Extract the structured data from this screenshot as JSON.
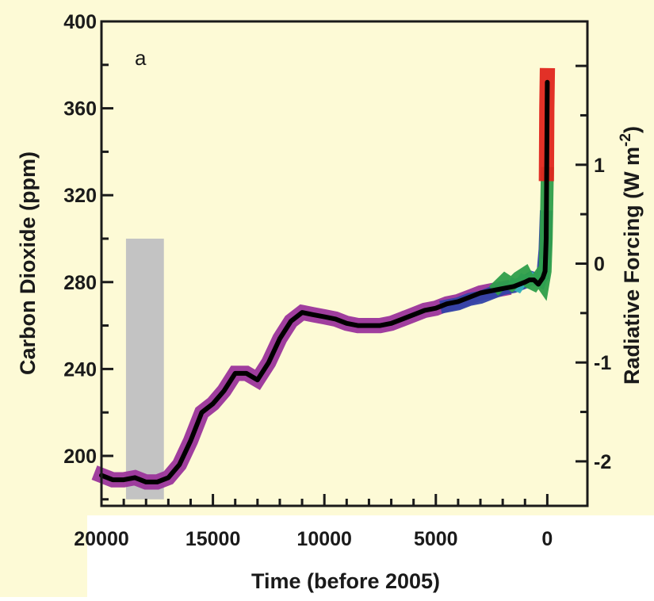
{
  "chart_data": {
    "type": "line",
    "panel_label": "a",
    "xlabel": "Time (before 2005)",
    "ylabel": "Carbon Dioxide (ppm)",
    "y2label": "Radiative Forcing (W m⁻²)",
    "y2label_parts": {
      "base": "Radiative Forcing (W m",
      "sup": "-2",
      "end": ")"
    },
    "xlim": [
      20000,
      -1800
    ],
    "ylim": [
      177,
      400
    ],
    "y2lim": [
      -2.45,
      2.45
    ],
    "x_ticks": [
      20000,
      15000,
      10000,
      5000,
      0
    ],
    "x_tick_labels": [
      "20000",
      "15000",
      "10000",
      "5000",
      "0"
    ],
    "y_ticks": [
      200,
      240,
      280,
      320,
      360,
      400
    ],
    "y_tick_labels": [
      "200",
      "240",
      "280",
      "320",
      "360",
      "400"
    ],
    "y2_ticks": [
      -2,
      -1,
      0,
      1
    ],
    "y2_tick_labels": [
      "-2",
      "-1",
      "0",
      "1"
    ],
    "grid": false,
    "legend": "none",
    "background_color": "#fdfad6",
    "shaded_range": {
      "x": [
        18900,
        17200
      ],
      "y": [
        180,
        300
      ],
      "color": "#c3c3c3"
    },
    "series": [
      {
        "color": "#9b349b",
        "band_halfwidth": 3.5,
        "x": [
          20000,
          19500,
          19000,
          18500,
          18000,
          17500,
          17000,
          16500,
          16000,
          15500,
          15000,
          14500,
          14000,
          13500,
          13000,
          12500,
          12000,
          11500,
          11000,
          10500,
          10000,
          9500,
          9000,
          8500,
          8000,
          7500,
          7000,
          6500,
          6000,
          5500,
          5000,
          4500,
          4000,
          3500,
          3000,
          2500,
          2000
        ],
        "y": [
          191,
          189,
          189,
          190,
          188,
          188,
          190,
          196,
          207,
          220,
          224,
          230,
          238,
          238,
          235,
          243,
          254,
          262,
          266,
          265,
          264,
          263,
          261,
          260,
          260,
          260,
          261,
          263,
          265,
          267,
          268,
          270,
          271,
          273,
          275,
          276,
          277
        ]
      },
      {
        "color": "#3343a8",
        "band_halfwidth": 3,
        "x": [
          4500,
          4000,
          3500,
          3000,
          2500,
          2000,
          1500,
          1000,
          700,
          400,
          200,
          100,
          50
        ],
        "y": [
          269,
          270,
          272,
          273,
          275,
          277,
          278,
          280,
          282,
          281,
          283,
          295,
          310
        ]
      },
      {
        "color": "#33b0b8",
        "band_halfwidth": 2.5,
        "x": [
          1500,
          1300,
          1100,
          900,
          700,
          500,
          300,
          200,
          100
        ],
        "y": [
          279,
          278,
          281,
          280,
          282,
          281,
          280,
          283,
          288
        ]
      },
      {
        "color": "#2e9e4a",
        "band_halfwidth": 3,
        "x": [
          2200,
          1900,
          1600,
          1300,
          1000,
          800,
          600,
          400,
          200,
          100,
          50,
          0
        ],
        "y": [
          278,
          281,
          279,
          282,
          284,
          280,
          279,
          282,
          279,
          285,
          300,
          330
        ]
      },
      {
        "color": "#e0261d",
        "band_halfwidth": 3.5,
        "x": [
          40,
          20,
          0
        ],
        "y": [
          330,
          360,
          375
        ]
      },
      {
        "color": "#000000",
        "band_halfwidth": 0,
        "x": [
          20000,
          19500,
          19000,
          18500,
          18000,
          17500,
          17000,
          16500,
          16000,
          15500,
          15000,
          14500,
          14000,
          13500,
          13000,
          12500,
          12000,
          11500,
          11000,
          10500,
          10000,
          9500,
          9000,
          8500,
          8000,
          7500,
          7000,
          6500,
          6000,
          5500,
          5000,
          4500,
          4000,
          3500,
          3000,
          2500,
          2000,
          1500,
          1000,
          800,
          600,
          400,
          200,
          100,
          50,
          20,
          0
        ],
        "y": [
          191,
          189,
          189,
          190,
          188,
          188,
          190,
          196,
          207,
          220,
          224,
          230,
          238,
          238,
          235,
          243,
          254,
          262,
          266,
          265,
          264,
          263,
          261,
          260,
          260,
          260,
          261,
          263,
          265,
          267,
          268,
          270,
          271,
          273,
          275,
          276,
          277,
          278,
          280,
          281,
          281,
          279,
          282,
          285,
          300,
          340,
          372
        ]
      }
    ]
  }
}
